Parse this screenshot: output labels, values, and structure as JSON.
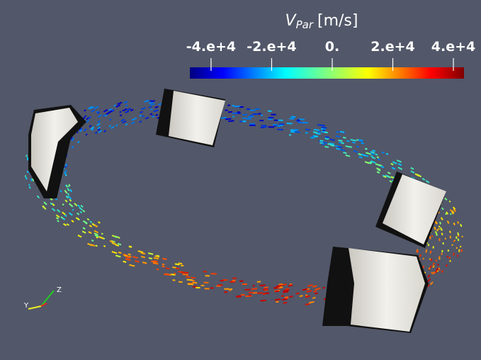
{
  "colorbar": {
    "title_symbol": "V",
    "title_subscript": "Par",
    "title_unit": "[m/s]",
    "lim": [
      -47000,
      43500
    ],
    "ticks": [
      {
        "value": -40000,
        "label": "-4.e+4"
      },
      {
        "value": -20000,
        "label": "-2.e+4"
      },
      {
        "value": 0,
        "label": "0."
      },
      {
        "value": 20000,
        "label": "2.e+4"
      },
      {
        "value": 40000,
        "label": "4.e+4"
      }
    ]
  },
  "axes_triad": {
    "y": "Y",
    "z": "Z"
  }
}
